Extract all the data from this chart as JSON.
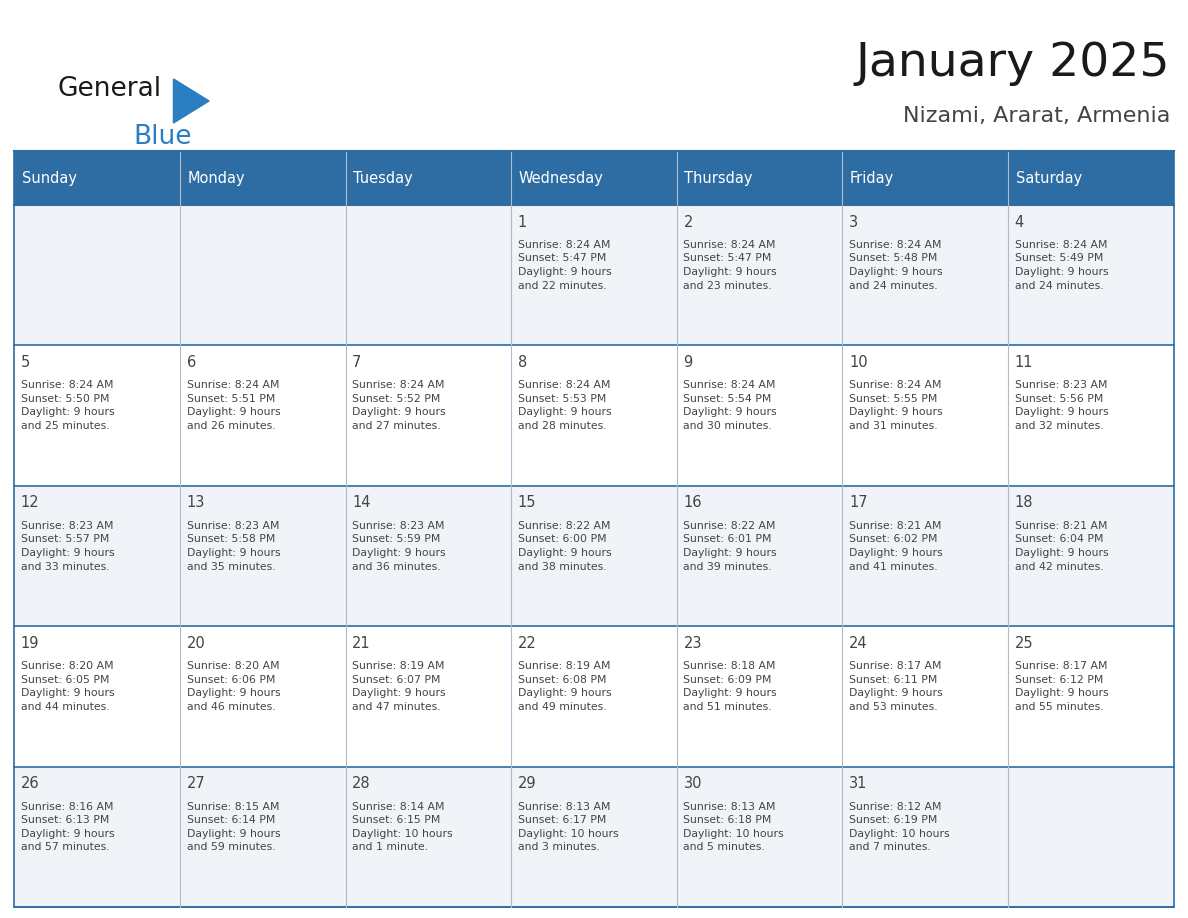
{
  "title": "January 2025",
  "subtitle": "Nizami, Ararat, Armenia",
  "header_bg_color": "#2E6DA4",
  "header_text_color": "#FFFFFF",
  "row_bg_colors": [
    "#F0F4F8",
    "#FFFFFF",
    "#F0F4F8",
    "#FFFFFF",
    "#F0F4F8"
  ],
  "border_color_h": "#2E6DA4",
  "border_color_v": "#AABCCE",
  "text_color": "#444444",
  "days_of_week": [
    "Sunday",
    "Monday",
    "Tuesday",
    "Wednesday",
    "Thursday",
    "Friday",
    "Saturday"
  ],
  "logo_general_color": "#1A1A1A",
  "logo_blue_color": "#2B7EC1",
  "calendar_data": [
    [
      "",
      "",
      "",
      "1\nSunrise: 8:24 AM\nSunset: 5:47 PM\nDaylight: 9 hours\nand 22 minutes.",
      "2\nSunrise: 8:24 AM\nSunset: 5:47 PM\nDaylight: 9 hours\nand 23 minutes.",
      "3\nSunrise: 8:24 AM\nSunset: 5:48 PM\nDaylight: 9 hours\nand 24 minutes.",
      "4\nSunrise: 8:24 AM\nSunset: 5:49 PM\nDaylight: 9 hours\nand 24 minutes."
    ],
    [
      "5\nSunrise: 8:24 AM\nSunset: 5:50 PM\nDaylight: 9 hours\nand 25 minutes.",
      "6\nSunrise: 8:24 AM\nSunset: 5:51 PM\nDaylight: 9 hours\nand 26 minutes.",
      "7\nSunrise: 8:24 AM\nSunset: 5:52 PM\nDaylight: 9 hours\nand 27 minutes.",
      "8\nSunrise: 8:24 AM\nSunset: 5:53 PM\nDaylight: 9 hours\nand 28 minutes.",
      "9\nSunrise: 8:24 AM\nSunset: 5:54 PM\nDaylight: 9 hours\nand 30 minutes.",
      "10\nSunrise: 8:24 AM\nSunset: 5:55 PM\nDaylight: 9 hours\nand 31 minutes.",
      "11\nSunrise: 8:23 AM\nSunset: 5:56 PM\nDaylight: 9 hours\nand 32 minutes."
    ],
    [
      "12\nSunrise: 8:23 AM\nSunset: 5:57 PM\nDaylight: 9 hours\nand 33 minutes.",
      "13\nSunrise: 8:23 AM\nSunset: 5:58 PM\nDaylight: 9 hours\nand 35 minutes.",
      "14\nSunrise: 8:23 AM\nSunset: 5:59 PM\nDaylight: 9 hours\nand 36 minutes.",
      "15\nSunrise: 8:22 AM\nSunset: 6:00 PM\nDaylight: 9 hours\nand 38 minutes.",
      "16\nSunrise: 8:22 AM\nSunset: 6:01 PM\nDaylight: 9 hours\nand 39 minutes.",
      "17\nSunrise: 8:21 AM\nSunset: 6:02 PM\nDaylight: 9 hours\nand 41 minutes.",
      "18\nSunrise: 8:21 AM\nSunset: 6:04 PM\nDaylight: 9 hours\nand 42 minutes."
    ],
    [
      "19\nSunrise: 8:20 AM\nSunset: 6:05 PM\nDaylight: 9 hours\nand 44 minutes.",
      "20\nSunrise: 8:20 AM\nSunset: 6:06 PM\nDaylight: 9 hours\nand 46 minutes.",
      "21\nSunrise: 8:19 AM\nSunset: 6:07 PM\nDaylight: 9 hours\nand 47 minutes.",
      "22\nSunrise: 8:19 AM\nSunset: 6:08 PM\nDaylight: 9 hours\nand 49 minutes.",
      "23\nSunrise: 8:18 AM\nSunset: 6:09 PM\nDaylight: 9 hours\nand 51 minutes.",
      "24\nSunrise: 8:17 AM\nSunset: 6:11 PM\nDaylight: 9 hours\nand 53 minutes.",
      "25\nSunrise: 8:17 AM\nSunset: 6:12 PM\nDaylight: 9 hours\nand 55 minutes."
    ],
    [
      "26\nSunrise: 8:16 AM\nSunset: 6:13 PM\nDaylight: 9 hours\nand 57 minutes.",
      "27\nSunrise: 8:15 AM\nSunset: 6:14 PM\nDaylight: 9 hours\nand 59 minutes.",
      "28\nSunrise: 8:14 AM\nSunset: 6:15 PM\nDaylight: 10 hours\nand 1 minute.",
      "29\nSunrise: 8:13 AM\nSunset: 6:17 PM\nDaylight: 10 hours\nand 3 minutes.",
      "30\nSunrise: 8:13 AM\nSunset: 6:18 PM\nDaylight: 10 hours\nand 5 minutes.",
      "31\nSunrise: 8:12 AM\nSunset: 6:19 PM\nDaylight: 10 hours\nand 7 minutes.",
      ""
    ]
  ]
}
